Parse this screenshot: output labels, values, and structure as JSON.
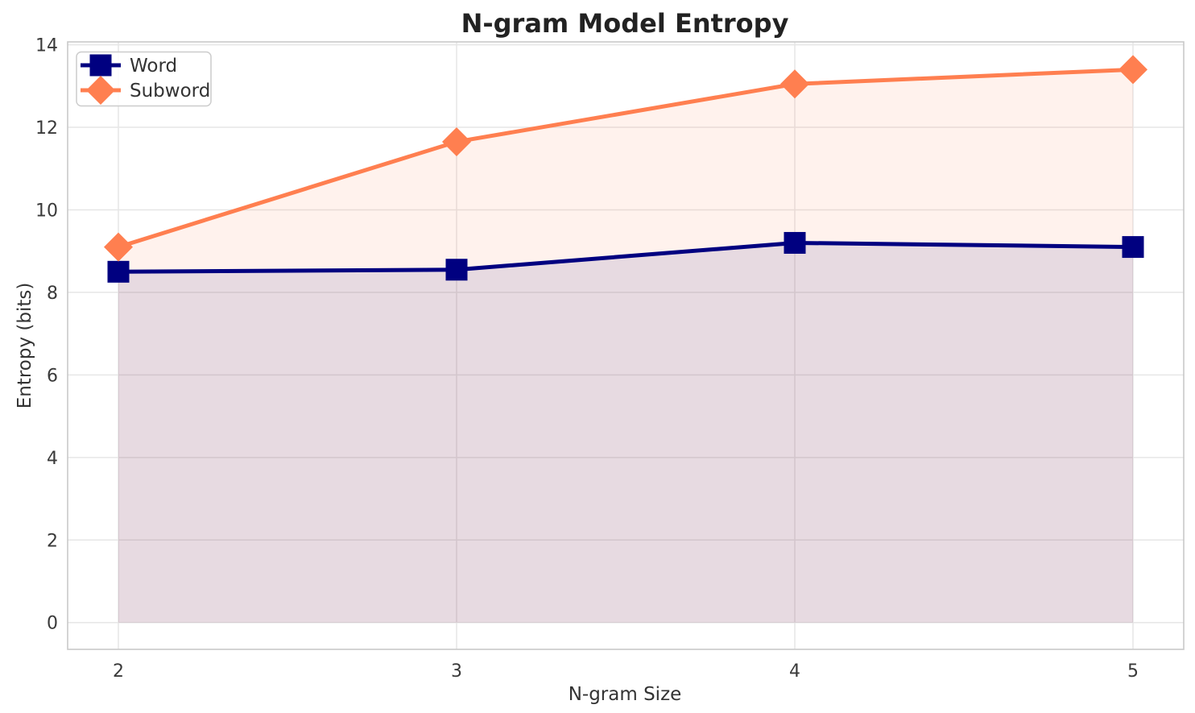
{
  "title": "N-gram Model Entropy",
  "axes": {
    "xlabel": "N-gram Size",
    "ylabel": "Entropy (bits)"
  },
  "chart_data": {
    "type": "line",
    "title": "N-gram Model Entropy",
    "xlabel": "N-gram Size",
    "ylabel": "Entropy (bits)",
    "x": [
      2,
      3,
      4,
      5
    ],
    "series": [
      {
        "name": "Word",
        "color": "#000080",
        "marker": "square",
        "values": [
          8.5,
          8.55,
          9.2,
          9.1
        ],
        "fill_to_zero": true,
        "fill_alpha": 0.1
      },
      {
        "name": "Subword",
        "color": "#FF7F50",
        "marker": "diamond",
        "values": [
          9.1,
          11.65,
          13.05,
          13.4
        ],
        "fill_to_zero": true,
        "fill_alpha": 0.1
      }
    ],
    "xticks": [
      2,
      3,
      4,
      5
    ],
    "yticks": [
      0,
      2,
      4,
      6,
      8,
      10,
      12,
      14
    ],
    "xlim": [
      1.85,
      5.15
    ],
    "ylim": [
      -0.65,
      14.07
    ],
    "grid": true,
    "legend_position": "upper left"
  },
  "colors": {
    "background": "#ffffff",
    "grid": "#e6e6e6",
    "spine": "#c9c9c9",
    "text": "#3a3a3a",
    "title_text": "#222222",
    "legend_border": "#cccccc",
    "legend_background": "#ffffff",
    "word_series": "#000080",
    "subword_series": "#FF7F50"
  }
}
